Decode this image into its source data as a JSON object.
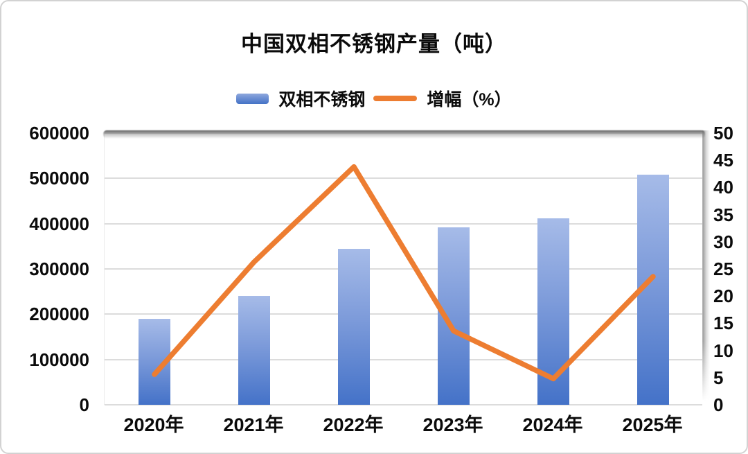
{
  "accent_colors": {
    "bar_top": "#a6bbe8",
    "bar_bottom": "#4472c8",
    "line": "#ED7D31",
    "grid": "#dcdcdc",
    "text": "#0b0b0b"
  },
  "legend": [
    {
      "label": "双相不锈钢",
      "type": "bar"
    },
    {
      "label": "增幅（%）",
      "type": "line"
    }
  ],
  "chart_data": {
    "type": "combo",
    "title": "中国双相不锈钢产量（吨）",
    "categories": [
      "2020年",
      "2021年",
      "2022年",
      "2023年",
      "2024年",
      "2025年"
    ],
    "series": [
      {
        "name": "双相不锈钢",
        "type": "bar",
        "axis": "left",
        "values": [
          190000,
          240000,
          345000,
          392000,
          411000,
          508000
        ]
      },
      {
        "name": "增幅（%）",
        "type": "line",
        "axis": "right",
        "values": [
          5.6,
          26.3,
          43.8,
          13.6,
          4.8,
          23.6
        ]
      }
    ],
    "left_axis": {
      "min": 0,
      "max": 600000,
      "step": 100000,
      "ticks": [
        "600000",
        "500000",
        "400000",
        "300000",
        "200000",
        "100000",
        "0"
      ]
    },
    "right_axis": {
      "min": 0,
      "max": 50,
      "step": 5,
      "ticks": [
        "50",
        "45",
        "40",
        "35",
        "30",
        "25",
        "20",
        "15",
        "10",
        "5",
        "0"
      ]
    },
    "grid": true,
    "legend_position": "top"
  }
}
